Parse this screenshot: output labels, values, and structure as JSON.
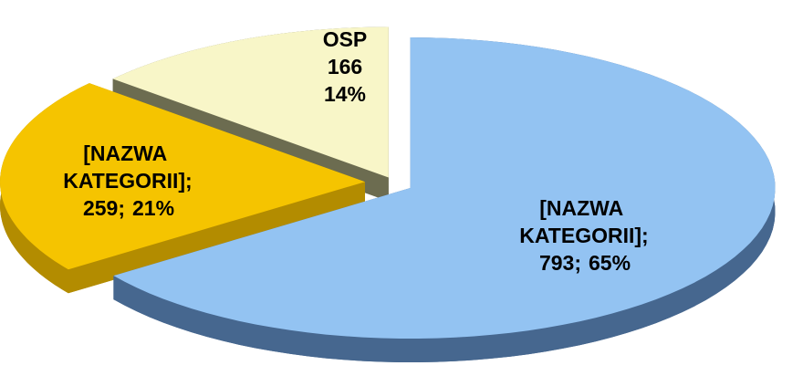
{
  "chart_data": {
    "type": "pie3d",
    "categories": [
      "[NAZWA KATEGORII];",
      "[NAZWA KATEGORII];",
      "OSP"
    ],
    "values": [
      793,
      259,
      166
    ],
    "value_labels": [
      "793;",
      "259;",
      "166"
    ],
    "percentages": [
      65,
      21,
      14
    ],
    "percentage_labels": [
      "65%",
      "21%",
      "14%"
    ],
    "colors": [
      "#93c3f2",
      "#f5c400",
      "#f8f6c8"
    ],
    "side_colors": [
      "#46678f",
      "#b38c00",
      "#6c6c50"
    ]
  }
}
